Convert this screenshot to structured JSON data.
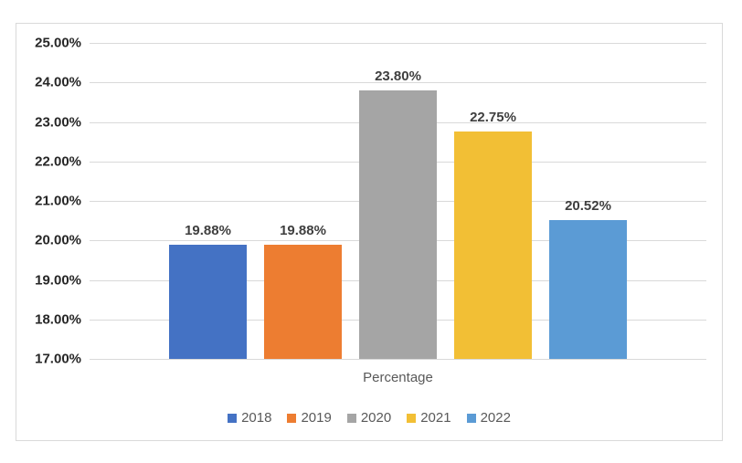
{
  "chart_data": {
    "type": "bar",
    "categories": [
      "2018",
      "2019",
      "2020",
      "2021",
      "2022"
    ],
    "values": [
      19.88,
      19.88,
      23.8,
      22.75,
      20.52
    ],
    "data_labels": [
      "19.88%",
      "19.88%",
      "23.80%",
      "22.75%",
      "20.52%"
    ],
    "series_colors": [
      "#4472C4",
      "#ED7D31",
      "#A5A5A5",
      "#F2BF35",
      "#5B9BD5"
    ],
    "title": "",
    "xlabel": "Percentage",
    "ylabel": "",
    "ylim": [
      17,
      25
    ],
    "ytick_step": 1,
    "ytick_labels": [
      "25.00%",
      "24.00%",
      "23.00%",
      "22.00%",
      "21.00%",
      "20.00%",
      "19.00%",
      "18.00%",
      "17.00%"
    ],
    "grid": true,
    "legend_position": "bottom",
    "legend_entries": [
      "2018",
      "2019",
      "2020",
      "2021",
      "2022"
    ]
  },
  "style_colors": {
    "gridline": "#D9D9D9",
    "frame_border": "#D9D9D9",
    "tick_text": "#262626",
    "data_label_text": "#3F3F3F",
    "axis_title_text": "#595959"
  }
}
